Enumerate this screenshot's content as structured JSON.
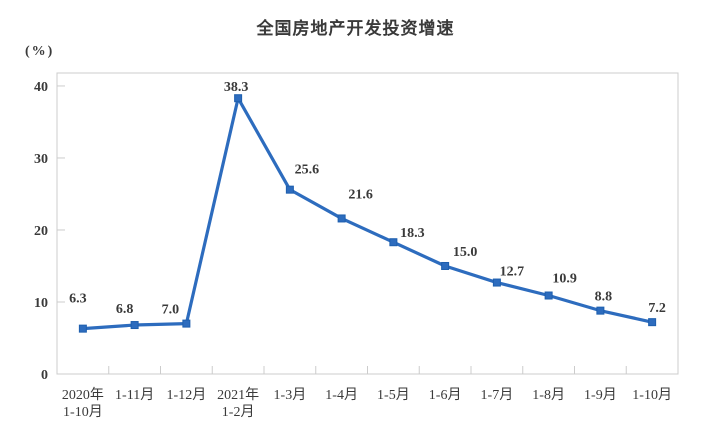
{
  "chart_data": {
    "type": "line",
    "title": "全国房地产开发投资增速",
    "ylabel": "(%)",
    "xlabel": "",
    "categories": [
      "2020年\n1-10月",
      "1-11月",
      "1-12月",
      "2021年\n1-2月",
      "1-3月",
      "1-4月",
      "1-5月",
      "1-6月",
      "1-7月",
      "1-8月",
      "1-9月",
      "1-10月"
    ],
    "values": [
      6.3,
      6.8,
      7.0,
      38.3,
      25.6,
      21.6,
      18.3,
      15.0,
      12.7,
      10.9,
      8.8,
      7.2
    ],
    "labels": [
      "6.3",
      "6.8",
      "7.0",
      "38.3",
      "25.6",
      "21.6",
      "18.3",
      "15.0",
      "12.7",
      "10.9",
      "8.8",
      "7.2"
    ],
    "yticks": [
      0,
      10,
      20,
      30,
      40
    ],
    "ylim": [
      0,
      41.8
    ],
    "grid": false,
    "legend": "none",
    "marker": "square",
    "line_color": "#2d6cbe",
    "marker_color": "#2d6cbe",
    "marker_edge_color": "#1e5fae",
    "text_color": "#3a3a3a",
    "axis_color": "#cccccc"
  }
}
